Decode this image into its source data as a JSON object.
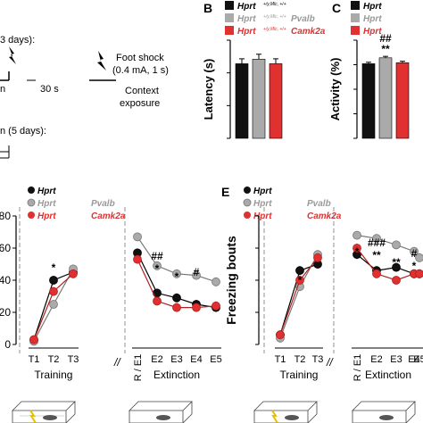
{
  "figure": {
    "panel_labels": [
      "B",
      "C",
      "E"
    ],
    "protocol": {
      "training_label": "3 days):",
      "shock_label": "Foot shock",
      "shock_params": "(0.4 mA, 1 s)",
      "context_label_1": "Context",
      "context_label_2": "exposure",
      "time_label": "30 s",
      "time_label_left": "n",
      "extinction_label": "n (5 days):"
    },
    "legend": {
      "entries": [
        {
          "main": "Hprt",
          "sup": "+/y,Mlc, +/+",
          "color": "#111111"
        },
        {
          "main": "Hprt",
          "sup": "+/y,Mlc, +/+",
          "cre": "Pvalb",
          "cre_sup": "Cre/+",
          "color": "#999999"
        },
        {
          "main": "Hprt",
          "sup": "+/y,Mlc, +/+",
          "cre": "Camk2a",
          "cre_sup": "Cre/+",
          "color": "#e03030"
        }
      ]
    },
    "colors": {
      "wt": "#111111",
      "pvalb": "#aaaaaa",
      "camk2a": "#e03030",
      "pvalb_text": "#999999",
      "camk2a_text": "#e03030"
    },
    "panel_e_ylabel": "Freezing bouts",
    "left_axis_ticks": [
      "80",
      "60",
      "40",
      "20",
      "0"
    ],
    "separator": "//"
  },
  "chart_data": [
    {
      "id": "B",
      "type": "bar",
      "title": "",
      "ylabel": "Latency (s)",
      "ylim": [
        0,
        30
      ],
      "yticks": [
        0,
        10,
        20,
        30
      ],
      "categories": [
        "Hprt",
        "Pvalb-Cre",
        "Camk2a-Cre"
      ],
      "values": [
        22.8,
        24.2,
        22.8
      ],
      "errors": [
        1.5,
        1.5,
        1.5
      ],
      "annotations": []
    },
    {
      "id": "C",
      "type": "bar",
      "title": "",
      "ylabel": "Activity (%)",
      "ylim": [
        0,
        100
      ],
      "yticks": [
        0,
        25,
        50,
        75,
        100
      ],
      "categories": [
        "Hprt",
        "Pvalb-Cre",
        "Camk2a-Cre"
      ],
      "values": [
        76,
        82,
        77
      ],
      "errors": [
        1.5,
        1.5,
        1.5
      ],
      "annotations": [
        "##",
        "**"
      ]
    },
    {
      "id": "D",
      "type": "line",
      "ylim": [
        0,
        80
      ],
      "yticks": [
        0,
        20,
        40,
        60,
        80
      ],
      "training": {
        "x": [
          "T1",
          "T2",
          "T3"
        ],
        "series": [
          {
            "name": "Hprt",
            "values": [
              3,
              40,
              45
            ]
          },
          {
            "name": "Pvalb-Cre",
            "values": [
              2,
              25,
              47
            ]
          },
          {
            "name": "Camk2a-Cre",
            "values": [
              3,
              33,
              44
            ]
          }
        ],
        "annotations": [
          "*"
        ]
      },
      "extinction": {
        "x": [
          "R / E1",
          "E2",
          "E3",
          "E4",
          "E5"
        ],
        "series": [
          {
            "name": "Hprt",
            "values": [
              57,
              32,
              29,
              25,
              23
            ]
          },
          {
            "name": "Pvalb-Cre",
            "values": [
              67,
              49,
              44,
              43,
              39
            ]
          },
          {
            "name": "Camk2a-Cre",
            "values": [
              53,
              27,
              23,
              23,
              24
            ]
          }
        ],
        "annotations": [
          "##",
          "*",
          "*",
          "#"
        ]
      },
      "xlabel_training": "Training",
      "xlabel_extinction": "Extinction"
    },
    {
      "id": "E",
      "type": "line",
      "ylabel": "Freezing bouts",
      "training": {
        "x": [
          "T1",
          "T2",
          "T3"
        ],
        "series": [
          {
            "name": "Hprt",
            "values": [
              3,
              23,
              25
            ]
          },
          {
            "name": "Pvalb-Cre",
            "values": [
              2,
              18,
              28
            ]
          },
          {
            "name": "Camk2a-Cre",
            "values": [
              3,
              20,
              27
            ]
          }
        ],
        "annotations": [
          "*"
        ]
      },
      "extinction": {
        "x": [
          "R / E1",
          "E2",
          "E3",
          "E4",
          "E5"
        ],
        "series": [
          {
            "name": "Hprt",
            "values": [
              28,
              23,
              24,
              22,
              22
            ]
          },
          {
            "name": "Pvalb-Cre",
            "values": [
              34,
              33,
              31,
              29,
              27
            ]
          },
          {
            "name": "Camk2a-Cre",
            "values": [
              30,
              22,
              20,
              22,
              22
            ]
          }
        ],
        "annotations": [
          "*",
          "###",
          "**",
          "**",
          "#",
          "*"
        ]
      },
      "xlabel_training": "Training",
      "xlabel_extinction": "Extinction"
    }
  ]
}
